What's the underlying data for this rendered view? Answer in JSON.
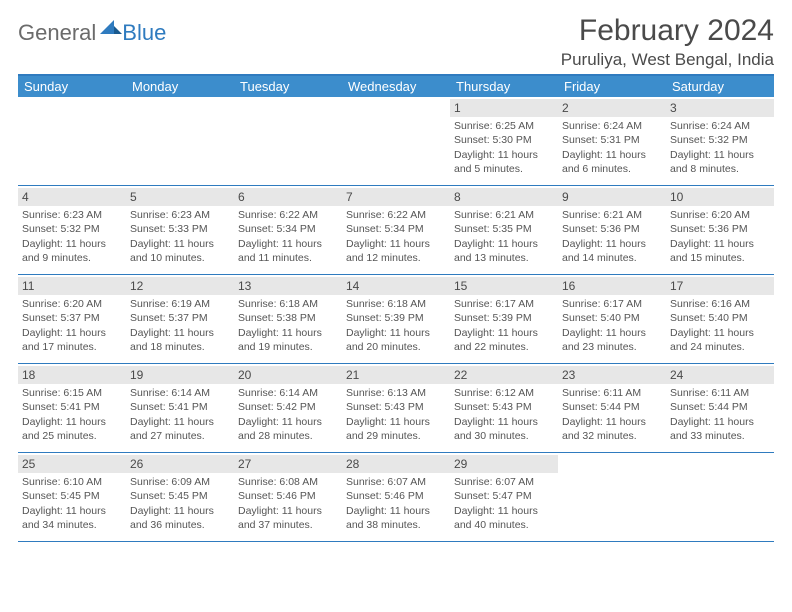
{
  "logo": {
    "general": "General",
    "blue": "Blue"
  },
  "title": "February 2024",
  "location": "Puruliya, West Bengal, India",
  "colors": {
    "header_bg": "#3c8dcc",
    "border": "#2f7bbf",
    "daynum_bg": "#e7e7e7",
    "text": "#4a4a4a",
    "body_text": "#555555"
  },
  "day_headers": [
    "Sunday",
    "Monday",
    "Tuesday",
    "Wednesday",
    "Thursday",
    "Friday",
    "Saturday"
  ],
  "weeks": [
    [
      {
        "empty": true
      },
      {
        "empty": true
      },
      {
        "empty": true
      },
      {
        "empty": true
      },
      {
        "num": "1",
        "sunrise": "Sunrise: 6:25 AM",
        "sunset": "Sunset: 5:30 PM",
        "daylight": "Daylight: 11 hours and 5 minutes."
      },
      {
        "num": "2",
        "sunrise": "Sunrise: 6:24 AM",
        "sunset": "Sunset: 5:31 PM",
        "daylight": "Daylight: 11 hours and 6 minutes."
      },
      {
        "num": "3",
        "sunrise": "Sunrise: 6:24 AM",
        "sunset": "Sunset: 5:32 PM",
        "daylight": "Daylight: 11 hours and 8 minutes."
      }
    ],
    [
      {
        "num": "4",
        "sunrise": "Sunrise: 6:23 AM",
        "sunset": "Sunset: 5:32 PM",
        "daylight": "Daylight: 11 hours and 9 minutes."
      },
      {
        "num": "5",
        "sunrise": "Sunrise: 6:23 AM",
        "sunset": "Sunset: 5:33 PM",
        "daylight": "Daylight: 11 hours and 10 minutes."
      },
      {
        "num": "6",
        "sunrise": "Sunrise: 6:22 AM",
        "sunset": "Sunset: 5:34 PM",
        "daylight": "Daylight: 11 hours and 11 minutes."
      },
      {
        "num": "7",
        "sunrise": "Sunrise: 6:22 AM",
        "sunset": "Sunset: 5:34 PM",
        "daylight": "Daylight: 11 hours and 12 minutes."
      },
      {
        "num": "8",
        "sunrise": "Sunrise: 6:21 AM",
        "sunset": "Sunset: 5:35 PM",
        "daylight": "Daylight: 11 hours and 13 minutes."
      },
      {
        "num": "9",
        "sunrise": "Sunrise: 6:21 AM",
        "sunset": "Sunset: 5:36 PM",
        "daylight": "Daylight: 11 hours and 14 minutes."
      },
      {
        "num": "10",
        "sunrise": "Sunrise: 6:20 AM",
        "sunset": "Sunset: 5:36 PM",
        "daylight": "Daylight: 11 hours and 15 minutes."
      }
    ],
    [
      {
        "num": "11",
        "sunrise": "Sunrise: 6:20 AM",
        "sunset": "Sunset: 5:37 PM",
        "daylight": "Daylight: 11 hours and 17 minutes."
      },
      {
        "num": "12",
        "sunrise": "Sunrise: 6:19 AM",
        "sunset": "Sunset: 5:37 PM",
        "daylight": "Daylight: 11 hours and 18 minutes."
      },
      {
        "num": "13",
        "sunrise": "Sunrise: 6:18 AM",
        "sunset": "Sunset: 5:38 PM",
        "daylight": "Daylight: 11 hours and 19 minutes."
      },
      {
        "num": "14",
        "sunrise": "Sunrise: 6:18 AM",
        "sunset": "Sunset: 5:39 PM",
        "daylight": "Daylight: 11 hours and 20 minutes."
      },
      {
        "num": "15",
        "sunrise": "Sunrise: 6:17 AM",
        "sunset": "Sunset: 5:39 PM",
        "daylight": "Daylight: 11 hours and 22 minutes."
      },
      {
        "num": "16",
        "sunrise": "Sunrise: 6:17 AM",
        "sunset": "Sunset: 5:40 PM",
        "daylight": "Daylight: 11 hours and 23 minutes."
      },
      {
        "num": "17",
        "sunrise": "Sunrise: 6:16 AM",
        "sunset": "Sunset: 5:40 PM",
        "daylight": "Daylight: 11 hours and 24 minutes."
      }
    ],
    [
      {
        "num": "18",
        "sunrise": "Sunrise: 6:15 AM",
        "sunset": "Sunset: 5:41 PM",
        "daylight": "Daylight: 11 hours and 25 minutes."
      },
      {
        "num": "19",
        "sunrise": "Sunrise: 6:14 AM",
        "sunset": "Sunset: 5:41 PM",
        "daylight": "Daylight: 11 hours and 27 minutes."
      },
      {
        "num": "20",
        "sunrise": "Sunrise: 6:14 AM",
        "sunset": "Sunset: 5:42 PM",
        "daylight": "Daylight: 11 hours and 28 minutes."
      },
      {
        "num": "21",
        "sunrise": "Sunrise: 6:13 AM",
        "sunset": "Sunset: 5:43 PM",
        "daylight": "Daylight: 11 hours and 29 minutes."
      },
      {
        "num": "22",
        "sunrise": "Sunrise: 6:12 AM",
        "sunset": "Sunset: 5:43 PM",
        "daylight": "Daylight: 11 hours and 30 minutes."
      },
      {
        "num": "23",
        "sunrise": "Sunrise: 6:11 AM",
        "sunset": "Sunset: 5:44 PM",
        "daylight": "Daylight: 11 hours and 32 minutes."
      },
      {
        "num": "24",
        "sunrise": "Sunrise: 6:11 AM",
        "sunset": "Sunset: 5:44 PM",
        "daylight": "Daylight: 11 hours and 33 minutes."
      }
    ],
    [
      {
        "num": "25",
        "sunrise": "Sunrise: 6:10 AM",
        "sunset": "Sunset: 5:45 PM",
        "daylight": "Daylight: 11 hours and 34 minutes."
      },
      {
        "num": "26",
        "sunrise": "Sunrise: 6:09 AM",
        "sunset": "Sunset: 5:45 PM",
        "daylight": "Daylight: 11 hours and 36 minutes."
      },
      {
        "num": "27",
        "sunrise": "Sunrise: 6:08 AM",
        "sunset": "Sunset: 5:46 PM",
        "daylight": "Daylight: 11 hours and 37 minutes."
      },
      {
        "num": "28",
        "sunrise": "Sunrise: 6:07 AM",
        "sunset": "Sunset: 5:46 PM",
        "daylight": "Daylight: 11 hours and 38 minutes."
      },
      {
        "num": "29",
        "sunrise": "Sunrise: 6:07 AM",
        "sunset": "Sunset: 5:47 PM",
        "daylight": "Daylight: 11 hours and 40 minutes."
      },
      {
        "empty": true
      },
      {
        "empty": true
      }
    ]
  ]
}
